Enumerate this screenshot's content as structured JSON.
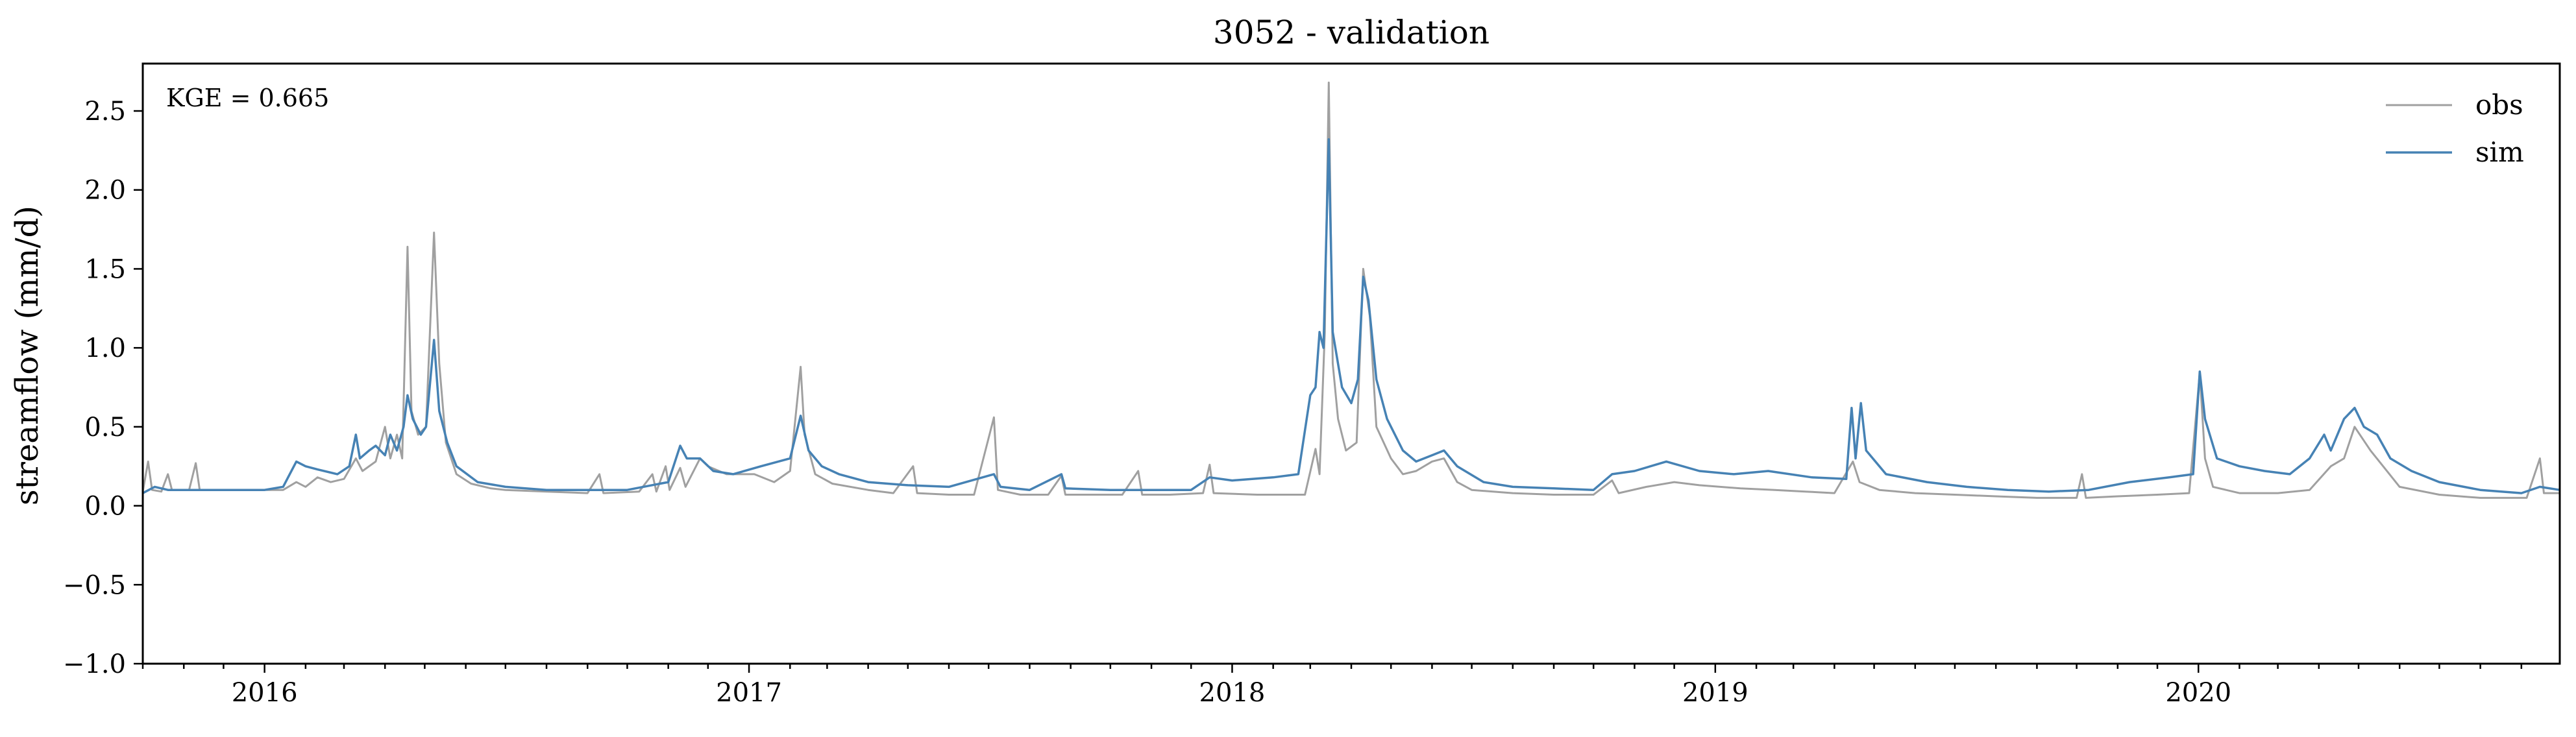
{
  "chart_data": {
    "type": "line",
    "title": "3052 - validation",
    "xlabel": "",
    "ylabel": "streamflow (mm/d)",
    "annotation": "KGE = 0.665",
    "x_range": [
      "2015-10-01",
      "2020-09-30"
    ],
    "x_ticks": [
      {
        "label": "2016",
        "date": "2016-01-01"
      },
      {
        "label": "2017",
        "date": "2017-01-01"
      },
      {
        "label": "2018",
        "date": "2018-01-01"
      },
      {
        "label": "2019",
        "date": "2019-01-01"
      },
      {
        "label": "2020",
        "date": "2020-01-01"
      }
    ],
    "ylim": [
      -1.0,
      2.8
    ],
    "y_ticks": [
      {
        "label": "2.5",
        "value": 2.5
      },
      {
        "label": "2.0",
        "value": 2.0
      },
      {
        "label": "1.5",
        "value": 1.5
      },
      {
        "label": "1.0",
        "value": 1.0
      },
      {
        "label": "0.5",
        "value": 0.5
      },
      {
        "label": "0.0",
        "value": 0.0
      },
      {
        "label": "−0.5",
        "value": -0.5
      },
      {
        "label": "−1.0",
        "value": -1.0
      }
    ],
    "grid": false,
    "legend_position": "top-right",
    "series": [
      {
        "name": "obs",
        "color": "#a0a0a0",
        "points": [
          [
            "2015-10-01",
            0.09
          ],
          [
            "2015-10-05",
            0.28
          ],
          [
            "2015-10-08",
            0.1
          ],
          [
            "2015-10-15",
            0.09
          ],
          [
            "2015-10-20",
            0.2
          ],
          [
            "2015-10-23",
            0.1
          ],
          [
            "2015-11-05",
            0.1
          ],
          [
            "2015-11-10",
            0.27
          ],
          [
            "2015-11-13",
            0.1
          ],
          [
            "2015-12-01",
            0.1
          ],
          [
            "2016-01-01",
            0.1
          ],
          [
            "2016-01-15",
            0.1
          ],
          [
            "2016-01-25",
            0.15
          ],
          [
            "2016-02-01",
            0.12
          ],
          [
            "2016-02-10",
            0.18
          ],
          [
            "2016-02-20",
            0.15
          ],
          [
            "2016-03-01",
            0.17
          ],
          [
            "2016-03-10",
            0.3
          ],
          [
            "2016-03-15",
            0.22
          ],
          [
            "2016-03-25",
            0.28
          ],
          [
            "2016-04-01",
            0.5
          ],
          [
            "2016-04-05",
            0.3
          ],
          [
            "2016-04-10",
            0.45
          ],
          [
            "2016-04-14",
            0.3
          ],
          [
            "2016-04-18",
            1.64
          ],
          [
            "2016-04-21",
            0.6
          ],
          [
            "2016-04-26",
            0.45
          ],
          [
            "2016-05-02",
            0.5
          ],
          [
            "2016-05-08",
            1.73
          ],
          [
            "2016-05-12",
            0.9
          ],
          [
            "2016-05-17",
            0.4
          ],
          [
            "2016-05-25",
            0.2
          ],
          [
            "2016-06-05",
            0.14
          ],
          [
            "2016-06-20",
            0.11
          ],
          [
            "2016-07-01",
            0.1
          ],
          [
            "2016-08-01",
            0.09
          ],
          [
            "2016-09-01",
            0.08
          ],
          [
            "2016-09-10",
            0.2
          ],
          [
            "2016-09-13",
            0.08
          ],
          [
            "2016-10-10",
            0.09
          ],
          [
            "2016-10-20",
            0.2
          ],
          [
            "2016-10-23",
            0.09
          ],
          [
            "2016-10-30",
            0.25
          ],
          [
            "2016-11-02",
            0.1
          ],
          [
            "2016-11-10",
            0.24
          ],
          [
            "2016-11-14",
            0.12
          ],
          [
            "2016-11-25",
            0.3
          ],
          [
            "2016-12-01",
            0.25
          ],
          [
            "2016-12-15",
            0.2
          ],
          [
            "2017-01-05",
            0.2
          ],
          [
            "2017-01-20",
            0.15
          ],
          [
            "2017-02-01",
            0.22
          ],
          [
            "2017-02-09",
            0.88
          ],
          [
            "2017-02-12",
            0.45
          ],
          [
            "2017-02-20",
            0.2
          ],
          [
            "2017-03-05",
            0.14
          ],
          [
            "2017-04-01",
            0.1
          ],
          [
            "2017-04-20",
            0.08
          ],
          [
            "2017-05-05",
            0.25
          ],
          [
            "2017-05-08",
            0.08
          ],
          [
            "2017-06-01",
            0.07
          ],
          [
            "2017-06-20",
            0.07
          ],
          [
            "2017-07-05",
            0.56
          ],
          [
            "2017-07-08",
            0.1
          ],
          [
            "2017-07-25",
            0.07
          ],
          [
            "2017-08-15",
            0.07
          ],
          [
            "2017-08-25",
            0.19
          ],
          [
            "2017-08-28",
            0.07
          ],
          [
            "2017-09-20",
            0.07
          ],
          [
            "2017-10-10",
            0.07
          ],
          [
            "2017-10-22",
            0.22
          ],
          [
            "2017-10-25",
            0.07
          ],
          [
            "2017-11-15",
            0.07
          ],
          [
            "2017-12-10",
            0.08
          ],
          [
            "2017-12-15",
            0.26
          ],
          [
            "2017-12-18",
            0.08
          ],
          [
            "2018-01-20",
            0.07
          ],
          [
            "2018-02-10",
            0.07
          ],
          [
            "2018-02-25",
            0.07
          ],
          [
            "2018-03-05",
            0.36
          ],
          [
            "2018-03-08",
            0.2
          ],
          [
            "2018-03-12",
            1.1
          ],
          [
            "2018-03-15",
            2.68
          ],
          [
            "2018-03-18",
            0.9
          ],
          [
            "2018-03-22",
            0.55
          ],
          [
            "2018-03-28",
            0.35
          ],
          [
            "2018-04-05",
            0.4
          ],
          [
            "2018-04-10",
            1.5
          ],
          [
            "2018-04-15",
            1.2
          ],
          [
            "2018-04-20",
            0.5
          ],
          [
            "2018-05-01",
            0.3
          ],
          [
            "2018-05-10",
            0.2
          ],
          [
            "2018-05-20",
            0.22
          ],
          [
            "2018-06-01",
            0.28
          ],
          [
            "2018-06-10",
            0.3
          ],
          [
            "2018-06-20",
            0.15
          ],
          [
            "2018-07-01",
            0.1
          ],
          [
            "2018-08-01",
            0.08
          ],
          [
            "2018-09-01",
            0.07
          ],
          [
            "2018-10-01",
            0.07
          ],
          [
            "2018-10-15",
            0.16
          ],
          [
            "2018-10-20",
            0.08
          ],
          [
            "2018-11-10",
            0.12
          ],
          [
            "2018-12-01",
            0.15
          ],
          [
            "2018-12-20",
            0.13
          ],
          [
            "2019-01-20",
            0.11
          ],
          [
            "2019-02-15",
            0.1
          ],
          [
            "2019-03-10",
            0.09
          ],
          [
            "2019-04-01",
            0.08
          ],
          [
            "2019-04-15",
            0.28
          ],
          [
            "2019-04-20",
            0.15
          ],
          [
            "2019-05-05",
            0.1
          ],
          [
            "2019-06-01",
            0.08
          ],
          [
            "2019-07-01",
            0.07
          ],
          [
            "2019-08-01",
            0.06
          ],
          [
            "2019-09-01",
            0.05
          ],
          [
            "2019-09-15",
            0.05
          ],
          [
            "2019-10-01",
            0.05
          ],
          [
            "2019-10-05",
            0.2
          ],
          [
            "2019-10-08",
            0.05
          ],
          [
            "2019-11-01",
            0.06
          ],
          [
            "2019-12-01",
            0.07
          ],
          [
            "2019-12-25",
            0.08
          ],
          [
            "2020-01-02",
            0.84
          ],
          [
            "2020-01-06",
            0.3
          ],
          [
            "2020-01-12",
            0.12
          ],
          [
            "2020-02-01",
            0.08
          ],
          [
            "2020-03-01",
            0.08
          ],
          [
            "2020-03-25",
            0.1
          ],
          [
            "2020-04-10",
            0.25
          ],
          [
            "2020-04-20",
            0.3
          ],
          [
            "2020-04-28",
            0.5
          ],
          [
            "2020-05-10",
            0.35
          ],
          [
            "2020-06-01",
            0.12
          ],
          [
            "2020-07-01",
            0.07
          ],
          [
            "2020-08-01",
            0.05
          ],
          [
            "2020-09-05",
            0.05
          ],
          [
            "2020-09-15",
            0.3
          ],
          [
            "2020-09-18",
            0.08
          ],
          [
            "2020-09-30",
            0.08
          ]
        ]
      },
      {
        "name": "sim",
        "color": "#4682b4",
        "points": [
          [
            "2015-10-01",
            0.08
          ],
          [
            "2015-10-10",
            0.12
          ],
          [
            "2015-10-20",
            0.1
          ],
          [
            "2015-11-10",
            0.1
          ],
          [
            "2015-12-01",
            0.1
          ],
          [
            "2016-01-01",
            0.1
          ],
          [
            "2016-01-15",
            0.12
          ],
          [
            "2016-01-25",
            0.28
          ],
          [
            "2016-02-01",
            0.25
          ],
          [
            "2016-02-10",
            0.23
          ],
          [
            "2016-02-25",
            0.2
          ],
          [
            "2016-03-05",
            0.25
          ],
          [
            "2016-03-10",
            0.45
          ],
          [
            "2016-03-13",
            0.3
          ],
          [
            "2016-03-20",
            0.35
          ],
          [
            "2016-03-25",
            0.38
          ],
          [
            "2016-04-01",
            0.32
          ],
          [
            "2016-04-05",
            0.45
          ],
          [
            "2016-04-10",
            0.35
          ],
          [
            "2016-04-15",
            0.5
          ],
          [
            "2016-04-18",
            0.7
          ],
          [
            "2016-04-22",
            0.55
          ],
          [
            "2016-04-28",
            0.45
          ],
          [
            "2016-05-02",
            0.5
          ],
          [
            "2016-05-08",
            1.05
          ],
          [
            "2016-05-12",
            0.6
          ],
          [
            "2016-05-18",
            0.4
          ],
          [
            "2016-05-25",
            0.25
          ],
          [
            "2016-06-10",
            0.15
          ],
          [
            "2016-07-01",
            0.12
          ],
          [
            "2016-08-01",
            0.1
          ],
          [
            "2016-09-01",
            0.1
          ],
          [
            "2016-10-01",
            0.1
          ],
          [
            "2016-11-01",
            0.15
          ],
          [
            "2016-11-10",
            0.38
          ],
          [
            "2016-11-15",
            0.3
          ],
          [
            "2016-11-25",
            0.3
          ],
          [
            "2016-12-05",
            0.22
          ],
          [
            "2016-12-20",
            0.2
          ],
          [
            "2017-01-10",
            0.25
          ],
          [
            "2017-02-01",
            0.3
          ],
          [
            "2017-02-09",
            0.57
          ],
          [
            "2017-02-15",
            0.35
          ],
          [
            "2017-02-25",
            0.25
          ],
          [
            "2017-03-10",
            0.2
          ],
          [
            "2017-04-01",
            0.15
          ],
          [
            "2017-05-01",
            0.13
          ],
          [
            "2017-06-01",
            0.12
          ],
          [
            "2017-07-05",
            0.2
          ],
          [
            "2017-07-10",
            0.12
          ],
          [
            "2017-08-01",
            0.1
          ],
          [
            "2017-08-25",
            0.2
          ],
          [
            "2017-08-28",
            0.11
          ],
          [
            "2017-10-01",
            0.1
          ],
          [
            "2017-11-01",
            0.1
          ],
          [
            "2017-12-01",
            0.1
          ],
          [
            "2017-12-15",
            0.18
          ],
          [
            "2018-01-01",
            0.16
          ],
          [
            "2018-02-01",
            0.18
          ],
          [
            "2018-02-20",
            0.2
          ],
          [
            "2018-03-01",
            0.7
          ],
          [
            "2018-03-05",
            0.75
          ],
          [
            "2018-03-08",
            1.1
          ],
          [
            "2018-03-11",
            1.0
          ],
          [
            "2018-03-15",
            2.32
          ],
          [
            "2018-03-18",
            1.1
          ],
          [
            "2018-03-25",
            0.75
          ],
          [
            "2018-04-01",
            0.65
          ],
          [
            "2018-04-06",
            0.8
          ],
          [
            "2018-04-10",
            1.45
          ],
          [
            "2018-04-14",
            1.3
          ],
          [
            "2018-04-20",
            0.8
          ],
          [
            "2018-04-28",
            0.55
          ],
          [
            "2018-05-10",
            0.35
          ],
          [
            "2018-05-20",
            0.28
          ],
          [
            "2018-06-01",
            0.32
          ],
          [
            "2018-06-10",
            0.35
          ],
          [
            "2018-06-20",
            0.25
          ],
          [
            "2018-07-10",
            0.15
          ],
          [
            "2018-08-01",
            0.12
          ],
          [
            "2018-09-01",
            0.11
          ],
          [
            "2018-10-01",
            0.1
          ],
          [
            "2018-10-15",
            0.2
          ],
          [
            "2018-11-01",
            0.22
          ],
          [
            "2018-11-25",
            0.28
          ],
          [
            "2018-12-20",
            0.22
          ],
          [
            "2019-01-15",
            0.2
          ],
          [
            "2019-02-10",
            0.22
          ],
          [
            "2019-03-15",
            0.18
          ],
          [
            "2019-04-10",
            0.17
          ],
          [
            "2019-04-14",
            0.62
          ],
          [
            "2019-04-17",
            0.3
          ],
          [
            "2019-04-21",
            0.65
          ],
          [
            "2019-04-25",
            0.35
          ],
          [
            "2019-05-10",
            0.2
          ],
          [
            "2019-06-10",
            0.15
          ],
          [
            "2019-07-10",
            0.12
          ],
          [
            "2019-08-10",
            0.1
          ],
          [
            "2019-09-10",
            0.09
          ],
          [
            "2019-10-10",
            0.1
          ],
          [
            "2019-11-10",
            0.15
          ],
          [
            "2019-12-10",
            0.18
          ],
          [
            "2019-12-28",
            0.2
          ],
          [
            "2020-01-02",
            0.85
          ],
          [
            "2020-01-06",
            0.55
          ],
          [
            "2020-01-15",
            0.3
          ],
          [
            "2020-02-01",
            0.25
          ],
          [
            "2020-02-20",
            0.22
          ],
          [
            "2020-03-10",
            0.2
          ],
          [
            "2020-03-25",
            0.3
          ],
          [
            "2020-04-05",
            0.45
          ],
          [
            "2020-04-10",
            0.35
          ],
          [
            "2020-04-20",
            0.55
          ],
          [
            "2020-04-28",
            0.62
          ],
          [
            "2020-05-05",
            0.5
          ],
          [
            "2020-05-15",
            0.45
          ],
          [
            "2020-05-25",
            0.3
          ],
          [
            "2020-06-10",
            0.22
          ],
          [
            "2020-07-01",
            0.15
          ],
          [
            "2020-08-01",
            0.1
          ],
          [
            "2020-09-01",
            0.08
          ],
          [
            "2020-09-15",
            0.12
          ],
          [
            "2020-09-30",
            0.1
          ]
        ]
      }
    ]
  }
}
